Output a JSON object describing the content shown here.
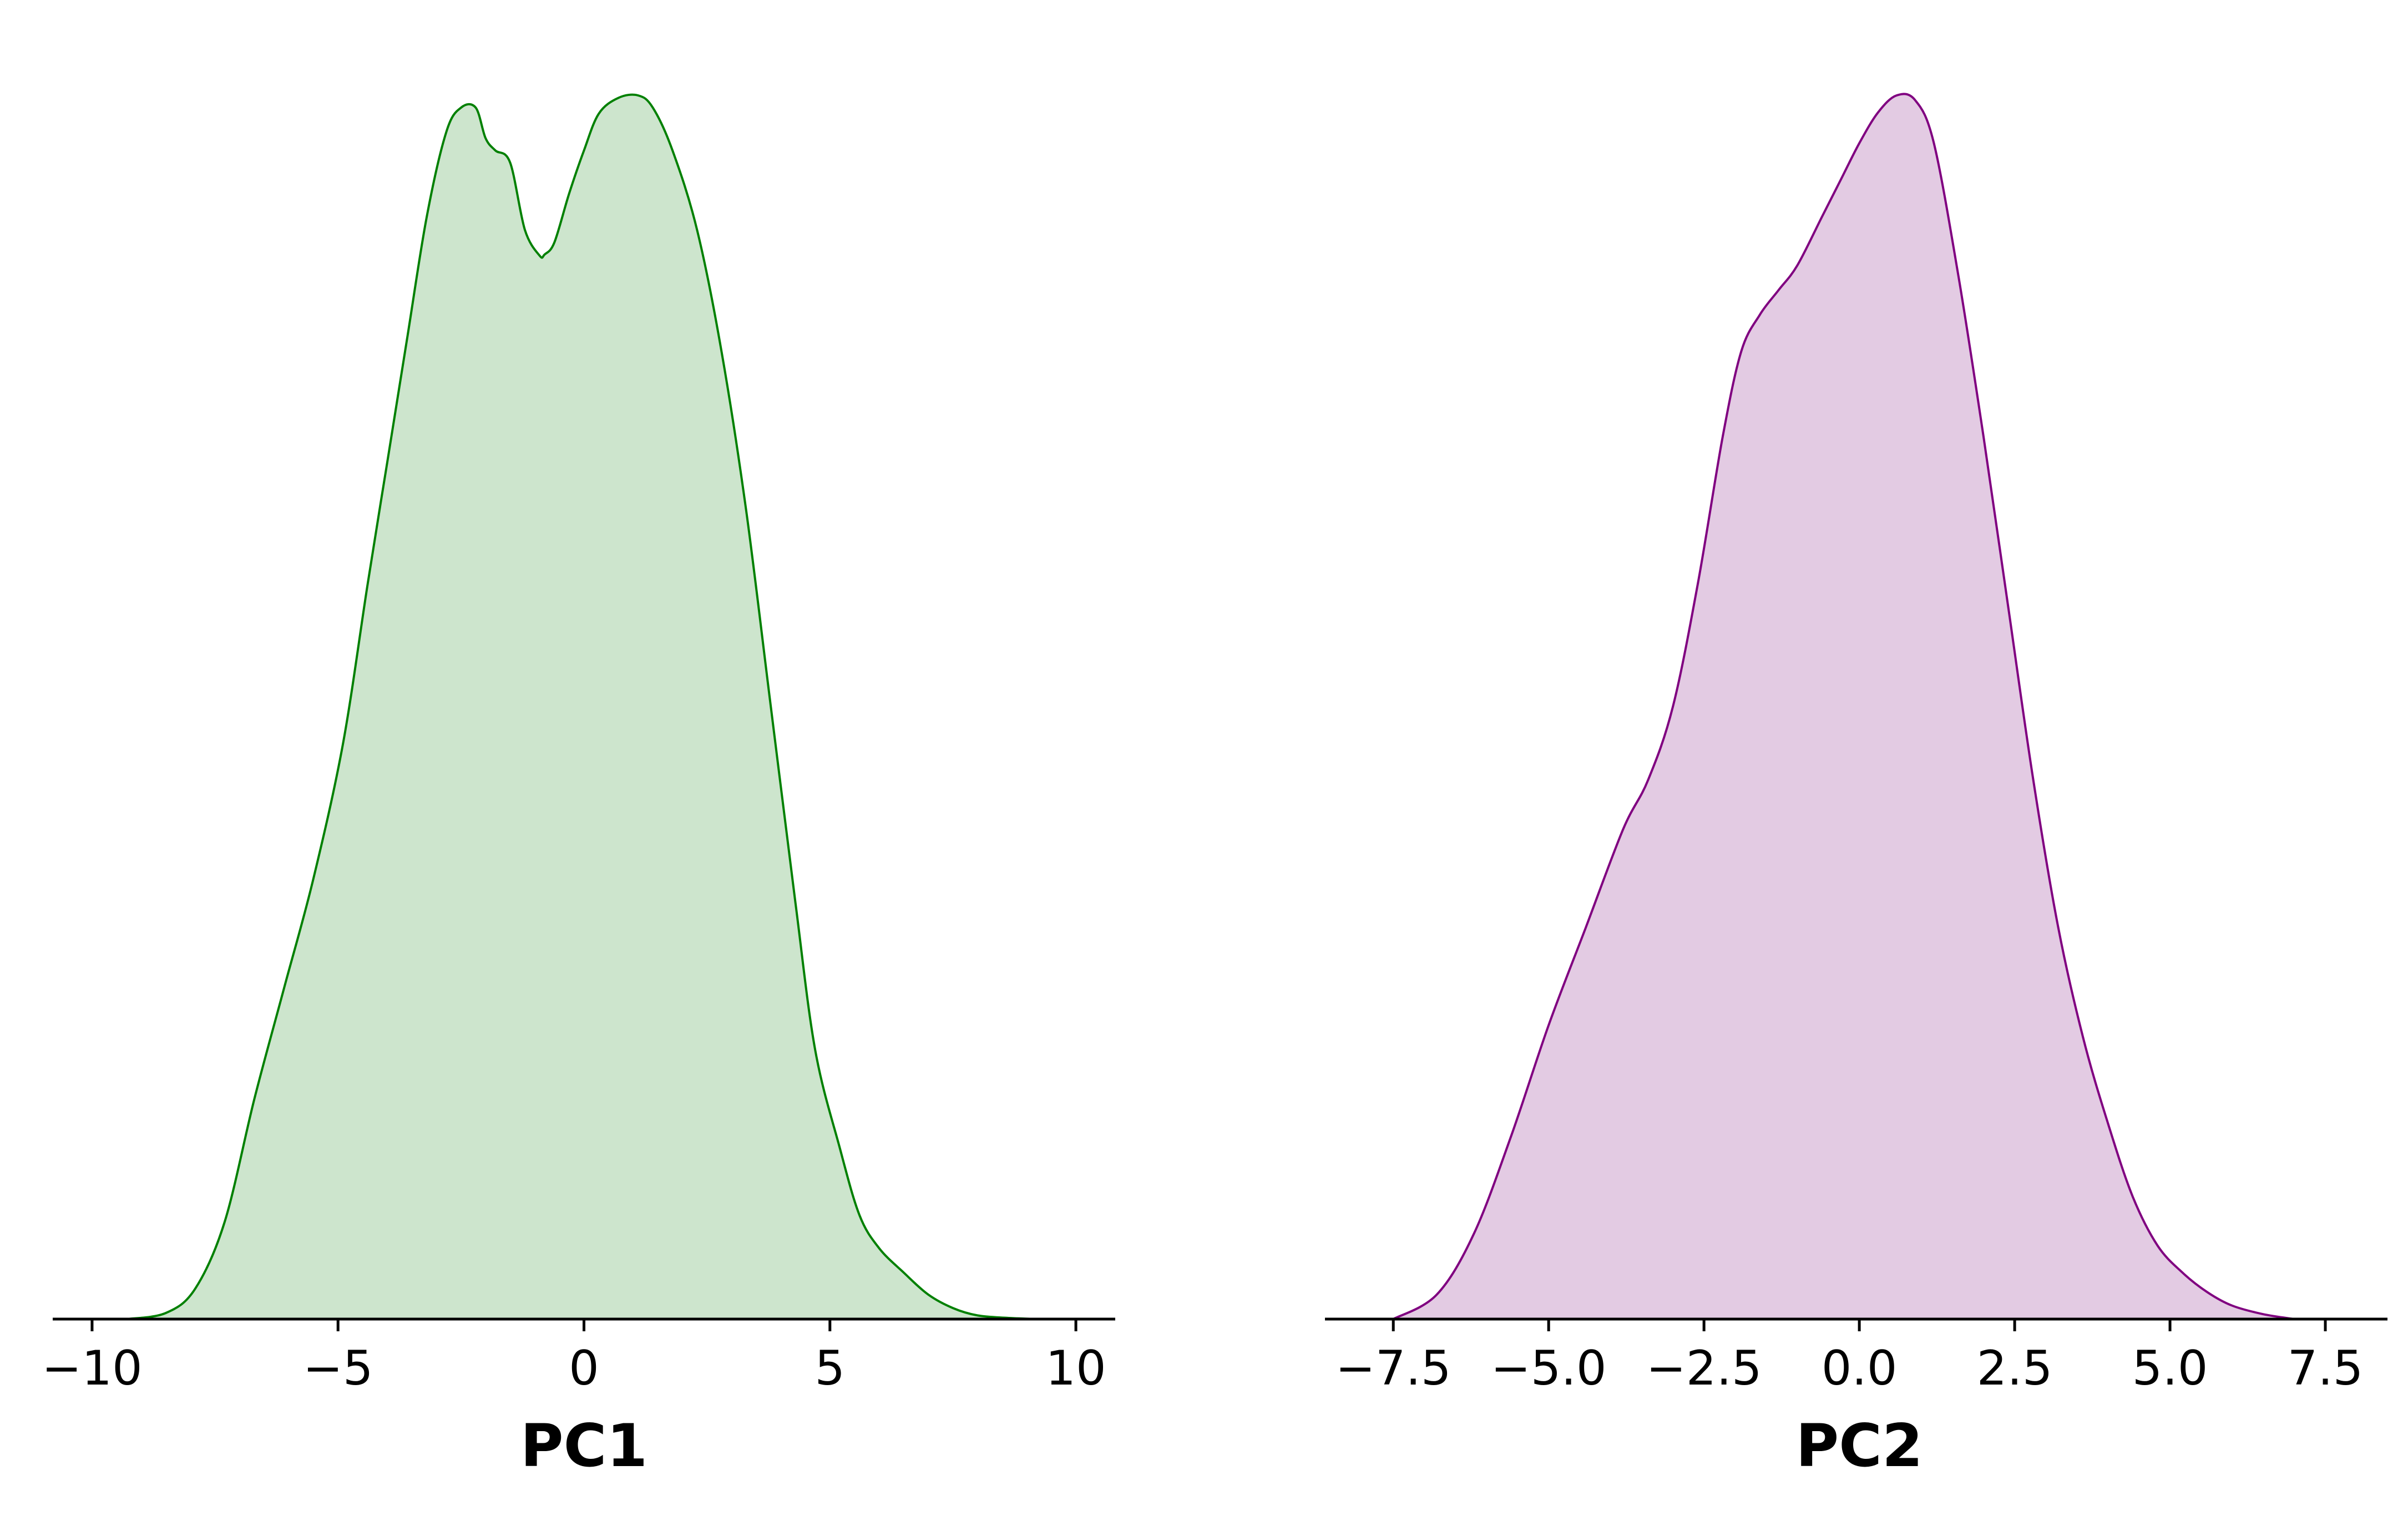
{
  "chart_data": [
    {
      "type": "area",
      "chart_kind": "kde",
      "xlabel": "PC1",
      "ylabel": "",
      "xlim": [
        -10.8,
        10.8
      ],
      "xticks": [
        -10,
        -5,
        0,
        5,
        10
      ],
      "xtick_labels": [
        "−10",
        "−5",
        "0",
        "5",
        "10"
      ],
      "y_axis_visible": false,
      "fill_color": "#cde5cd",
      "line_color": "#008000",
      "series": [
        {
          "x": [
            -9.3,
            -8.5,
            -7.9,
            -7.3,
            -6.7,
            -6.1,
            -5.5,
            -4.9,
            -4.4,
            -4.0,
            -3.6,
            -3.2,
            -2.8,
            -2.5,
            -2.2,
            -2.0,
            -1.8,
            -1.5,
            -1.2,
            -0.9,
            -0.8,
            -0.6,
            -0.3,
            0.0,
            0.3,
            0.7,
            1.1,
            1.4,
            1.8,
            2.3,
            2.8,
            3.3,
            3.8,
            4.3,
            4.7,
            5.2,
            5.6,
            6.0,
            6.5,
            7.0,
            7.5,
            8.0,
            8.6,
            9.2
          ],
          "y": [
            0.0,
            0.005,
            0.025,
            0.08,
            0.18,
            0.27,
            0.36,
            0.47,
            0.6,
            0.7,
            0.8,
            0.9,
            0.97,
            0.99,
            0.99,
            0.965,
            0.955,
            0.945,
            0.89,
            0.869,
            0.87,
            0.88,
            0.92,
            0.955,
            0.985,
            0.998,
            1.0,
            0.99,
            0.955,
            0.89,
            0.79,
            0.66,
            0.5,
            0.34,
            0.22,
            0.14,
            0.085,
            0.058,
            0.038,
            0.02,
            0.009,
            0.003,
            0.001,
            0.0
          ]
        }
      ]
    },
    {
      "type": "area",
      "chart_kind": "kde",
      "xlabel": "PC2",
      "ylabel": "",
      "xlim": [
        -8.6,
        8.5
      ],
      "xticks": [
        -7.5,
        -5.0,
        -2.5,
        0.0,
        2.5,
        5.0,
        7.5
      ],
      "xtick_labels": [
        "−7.5",
        "−5.0",
        "−2.5",
        "0.0",
        "2.5",
        "5.0",
        "7.5"
      ],
      "y_axis_visible": false,
      "fill_color": "#e3cbe3",
      "line_color": "#800080",
      "series": [
        {
          "x": [
            -7.5,
            -6.8,
            -6.2,
            -5.6,
            -5.0,
            -4.4,
            -3.8,
            -3.4,
            -3.0,
            -2.6,
            -2.2,
            -1.9,
            -1.6,
            -1.3,
            -1.0,
            -0.6,
            -0.3,
            0.0,
            0.3,
            0.6,
            0.9,
            1.2,
            1.6,
            2.0,
            2.4,
            2.8,
            3.2,
            3.6,
            4.0,
            4.4,
            4.8,
            5.2,
            5.6,
            6.0,
            6.5,
            7.0
          ],
          "y": [
            0.0,
            0.02,
            0.07,
            0.15,
            0.24,
            0.32,
            0.4,
            0.44,
            0.5,
            0.6,
            0.72,
            0.79,
            0.82,
            0.84,
            0.86,
            0.9,
            0.93,
            0.96,
            0.985,
            0.999,
            0.995,
            0.96,
            0.85,
            0.72,
            0.58,
            0.44,
            0.32,
            0.23,
            0.16,
            0.1,
            0.06,
            0.038,
            0.022,
            0.011,
            0.004,
            0.0
          ]
        }
      ]
    }
  ]
}
